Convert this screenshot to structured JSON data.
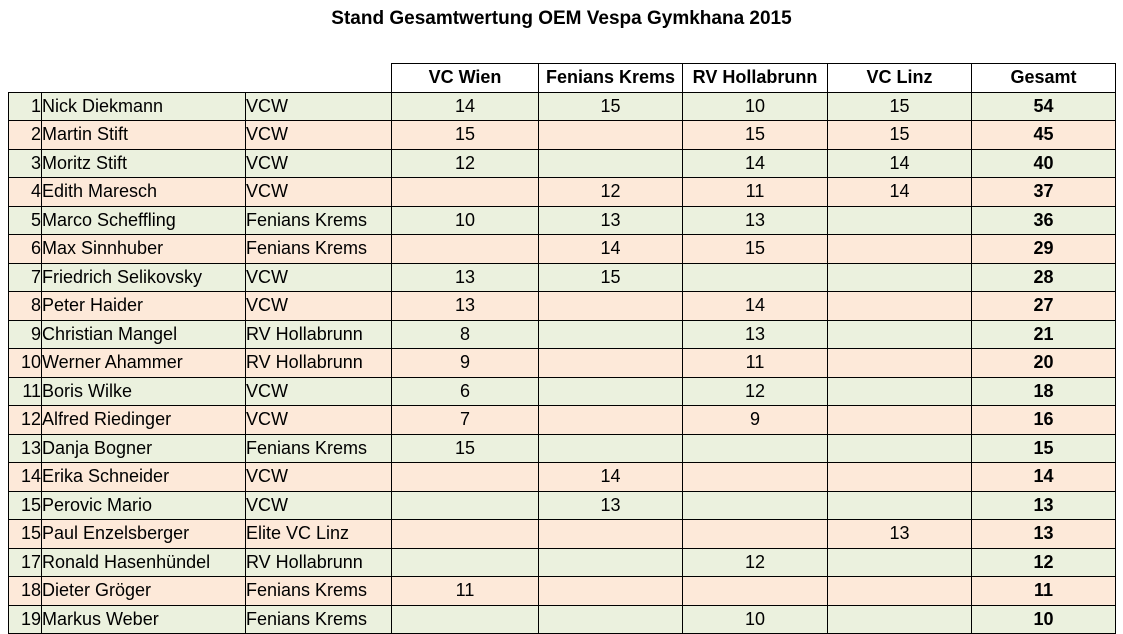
{
  "title": "Stand Gesamtwertung OEM Vespa Gymkhana 2015",
  "columns": [
    "VC Wien",
    "Fenians Krems",
    "RV Hollabrunn",
    "VC Linz",
    "Gesamt"
  ],
  "rows": [
    {
      "rank": "1",
      "name": "Nick Diekmann",
      "club": "VCW",
      "scores": [
        "14",
        "15",
        "10",
        "15"
      ],
      "total": "54"
    },
    {
      "rank": "2",
      "name": "Martin Stift",
      "club": "VCW",
      "scores": [
        "15",
        "",
        "15",
        "15"
      ],
      "total": "45"
    },
    {
      "rank": "3",
      "name": "Moritz Stift",
      "club": "VCW",
      "scores": [
        "12",
        "",
        "14",
        "14"
      ],
      "total": "40"
    },
    {
      "rank": "4",
      "name": "Edith Maresch",
      "club": "VCW",
      "scores": [
        "",
        "12",
        "11",
        "14"
      ],
      "total": "37"
    },
    {
      "rank": "5",
      "name": "Marco Scheffling",
      "club": "Fenians Krems",
      "scores": [
        "10",
        "13",
        "13",
        ""
      ],
      "total": "36"
    },
    {
      "rank": "6",
      "name": "Max Sinnhuber",
      "club": "Fenians Krems",
      "scores": [
        "",
        "14",
        "15",
        ""
      ],
      "total": "29"
    },
    {
      "rank": "7",
      "name": "Friedrich Selikovsky",
      "club": "VCW",
      "scores": [
        "13",
        "15",
        "",
        ""
      ],
      "total": "28"
    },
    {
      "rank": "8",
      "name": "Peter Haider",
      "club": "VCW",
      "scores": [
        "13",
        "",
        "14",
        ""
      ],
      "total": "27"
    },
    {
      "rank": "9",
      "name": "Christian Mangel",
      "club": "RV Hollabrunn",
      "scores": [
        "8",
        "",
        "13",
        ""
      ],
      "total": "21"
    },
    {
      "rank": "10",
      "name": "Werner Ahammer",
      "club": "RV Hollabrunn",
      "scores": [
        "9",
        "",
        "11",
        ""
      ],
      "total": "20"
    },
    {
      "rank": "11",
      "name": "Boris Wilke",
      "club": "VCW",
      "scores": [
        "6",
        "",
        "12",
        ""
      ],
      "total": "18"
    },
    {
      "rank": "12",
      "name": "Alfred Riedinger",
      "club": "VCW",
      "scores": [
        "7",
        "",
        "9",
        ""
      ],
      "total": "16"
    },
    {
      "rank": "13",
      "name": "Danja Bogner",
      "club": "Fenians Krems",
      "scores": [
        "15",
        "",
        "",
        ""
      ],
      "total": "15"
    },
    {
      "rank": "14",
      "name": "Erika Schneider",
      "club": "VCW",
      "scores": [
        "",
        "14",
        "",
        ""
      ],
      "total": "14"
    },
    {
      "rank": "15",
      "name": "Perovic Mario",
      "club": "VCW",
      "scores": [
        "",
        "13",
        "",
        ""
      ],
      "total": "13"
    },
    {
      "rank": "15",
      "name": "Paul Enzelsberger",
      "club": "Elite VC Linz",
      "scores": [
        "",
        "",
        "",
        "13"
      ],
      "total": "13"
    },
    {
      "rank": "17",
      "name": "Ronald Hasenhündel",
      "club": "RV Hollabrunn",
      "scores": [
        "",
        "",
        "12",
        ""
      ],
      "total": "12"
    },
    {
      "rank": "18",
      "name": "Dieter Gröger",
      "club": "Fenians Krems",
      "scores": [
        "11",
        "",
        "",
        ""
      ],
      "total": "11"
    },
    {
      "rank": "19",
      "name": "Markus Weber",
      "club": "Fenians Krems",
      "scores": [
        "",
        "",
        "10",
        ""
      ],
      "total": "10"
    }
  ],
  "colors": {
    "row_even": "#ebf1de",
    "row_odd": "#fde9d9",
    "border": "#000000"
  }
}
